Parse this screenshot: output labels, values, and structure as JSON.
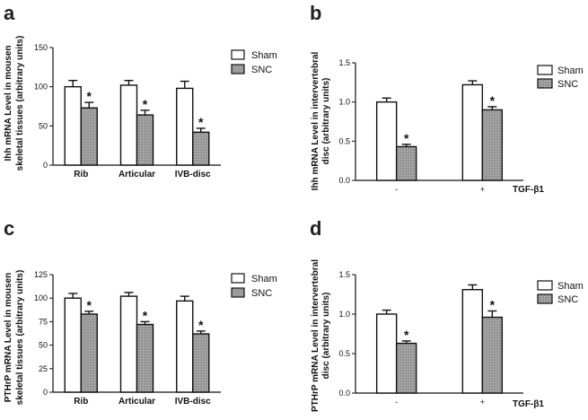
{
  "colors": {
    "sham_fill": "#ffffff",
    "snc_fill": "#8a8a8a",
    "stroke": "#111111"
  },
  "chart_data": [
    {
      "id": "a",
      "type": "bar",
      "letter": "a",
      "ylabel_lines": [
        "Ihh mRNA Level in mousen",
        "skeletal tissues (arbitrary units)"
      ],
      "ylim": [
        0,
        150
      ],
      "yticks": [
        "0",
        "50",
        "100",
        "150"
      ],
      "categories": [
        "Rib",
        "Articular",
        "IVB-disc"
      ],
      "series": [
        {
          "name": "Sham",
          "values": [
            100,
            102,
            98
          ],
          "errors": [
            8,
            6,
            9
          ],
          "significant": [
            false,
            false,
            false
          ]
        },
        {
          "name": "SNC",
          "values": [
            73,
            64,
            42
          ],
          "errors": [
            7,
            6,
            5
          ],
          "significant": [
            true,
            true,
            true
          ]
        }
      ],
      "significance_mark": "*",
      "xlabel": "",
      "condition_label": ""
    },
    {
      "id": "b",
      "type": "bar",
      "letter": "b",
      "ylabel_lines": [
        "Ihh mRNA Level in intervertebral",
        "disc (arbitrary units)"
      ],
      "ylim": [
        0,
        1.5
      ],
      "yticks": [
        "0.0",
        "0.5",
        "1.0",
        "1.5"
      ],
      "categories": [
        "-",
        "+"
      ],
      "series": [
        {
          "name": "Sham",
          "values": [
            1.0,
            1.22
          ],
          "errors": [
            0.05,
            0.05
          ],
          "significant": [
            false,
            false
          ]
        },
        {
          "name": "SNC",
          "values": [
            0.43,
            0.9
          ],
          "errors": [
            0.03,
            0.04
          ],
          "significant": [
            true,
            true
          ]
        }
      ],
      "significance_mark": "*",
      "xlabel": "",
      "condition_label": "TGF-β1"
    },
    {
      "id": "c",
      "type": "bar",
      "letter": "c",
      "ylabel_lines": [
        "PTHrP mRNA Level in mousen",
        "skeletal tissues (arbitrary units)"
      ],
      "ylim": [
        0,
        125
      ],
      "yticks": [
        "0",
        "25",
        "50",
        "75",
        "100",
        "125"
      ],
      "categories": [
        "Rib",
        "Articular",
        "IVB-disc"
      ],
      "series": [
        {
          "name": "Sham",
          "values": [
            100,
            102,
            97
          ],
          "errors": [
            5,
            4,
            5
          ],
          "significant": [
            false,
            false,
            false
          ]
        },
        {
          "name": "SNC",
          "values": [
            83,
            72,
            62
          ],
          "errors": [
            3,
            3,
            3
          ],
          "significant": [
            true,
            true,
            true
          ]
        }
      ],
      "significance_mark": "*",
      "xlabel": "",
      "condition_label": ""
    },
    {
      "id": "d",
      "type": "bar",
      "letter": "d",
      "ylabel_lines": [
        "PTHrP mRNA Level in intervertebral",
        "disc (arbitrary units)"
      ],
      "ylim": [
        0,
        1.5
      ],
      "yticks": [
        "0.0",
        "0.5",
        "1.0",
        "1.5"
      ],
      "categories": [
        "-",
        "+"
      ],
      "series": [
        {
          "name": "Sham",
          "values": [
            1.0,
            1.31
          ],
          "errors": [
            0.05,
            0.06
          ],
          "significant": [
            false,
            false
          ]
        },
        {
          "name": "SNC",
          "values": [
            0.63,
            0.96
          ],
          "errors": [
            0.03,
            0.08
          ],
          "significant": [
            true,
            true
          ]
        }
      ],
      "significance_mark": "*",
      "xlabel": "",
      "condition_label": "TGF-β1"
    }
  ]
}
